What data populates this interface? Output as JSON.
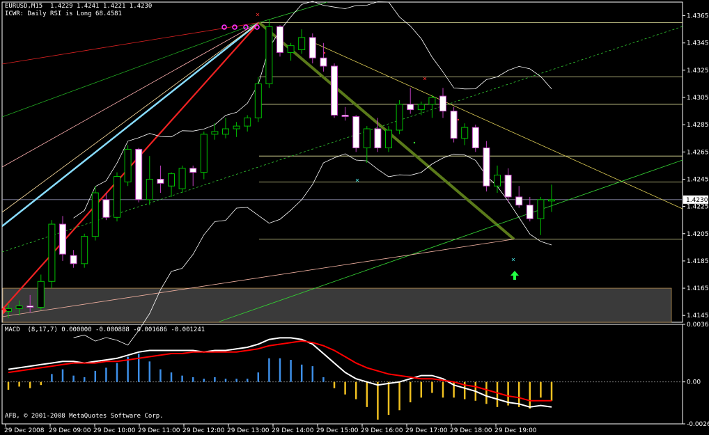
{
  "header": {
    "symbol_line": "EURUSD,M15  1.4229 1.4241 1.4221 1.4230",
    "indicator_line": "ICWR: Daily RSI is Long 68.4581"
  },
  "macd_panel": {
    "label": "MACD  (8,17,7) 0.000000 -0.000888 -0.001686 -0.001241",
    "copyright": "AFB, © 2001-2008 MetaQuotes Software Corp."
  },
  "colors": {
    "background": "#000000",
    "bull_candle": "#00c000",
    "bear_candle": "#ffffff",
    "grid": "#ffffff",
    "fib_lines": "#e8e8a0",
    "macd_line": "#ffffff",
    "signal_line": "#ff0000",
    "hist_pos": "#3d8fe8",
    "hist_neg": "#f0c020"
  },
  "chart_data": [
    {
      "type": "candlestick",
      "price_axis": {
        "min": 1.414,
        "max": 1.4375,
        "ticks": [
          "1.4365",
          "1.4345",
          "1.4325",
          "1.4305",
          "1.4285",
          "1.4265",
          "1.4245",
          "1.4225",
          "1.4205",
          "1.4185",
          "1.4165",
          "1.4145"
        ],
        "current_price": "1.4230"
      },
      "time_axis": {
        "labels": [
          "29 Dec 2008",
          "29 Dec 09:00",
          "29 Dec 10:00",
          "29 Dec 11:00",
          "29 Dec 12:00",
          "29 Dec 13:00",
          "29 Dec 14:00",
          "29 Dec 15:00",
          "29 Dec 16:00",
          "29 Dec 17:00",
          "29 Dec 18:00",
          "29 Dec 19:00"
        ]
      },
      "candles": [
        {
          "o": 1.4148,
          "h": 1.4154,
          "l": 1.4143,
          "c": 1.415
        },
        {
          "o": 1.415,
          "h": 1.4156,
          "l": 1.4145,
          "c": 1.4152
        },
        {
          "o": 1.4152,
          "h": 1.416,
          "l": 1.4147,
          "c": 1.4151
        },
        {
          "o": 1.4151,
          "h": 1.4175,
          "l": 1.4149,
          "c": 1.417
        },
        {
          "o": 1.417,
          "h": 1.4215,
          "l": 1.4165,
          "c": 1.4212
        },
        {
          "o": 1.4212,
          "h": 1.4218,
          "l": 1.4185,
          "c": 1.419
        },
        {
          "o": 1.4189,
          "h": 1.4193,
          "l": 1.418,
          "c": 1.4183
        },
        {
          "o": 1.4183,
          "h": 1.4205,
          "l": 1.418,
          "c": 1.4203
        },
        {
          "o": 1.4203,
          "h": 1.424,
          "l": 1.42,
          "c": 1.4235
        },
        {
          "o": 1.423,
          "h": 1.4235,
          "l": 1.4215,
          "c": 1.4217
        },
        {
          "o": 1.4217,
          "h": 1.425,
          "l": 1.4214,
          "c": 1.4247
        },
        {
          "o": 1.4243,
          "h": 1.427,
          "l": 1.424,
          "c": 1.4267
        },
        {
          "o": 1.4267,
          "h": 1.4268,
          "l": 1.4228,
          "c": 1.423
        },
        {
          "o": 1.423,
          "h": 1.4262,
          "l": 1.4226,
          "c": 1.4245
        },
        {
          "o": 1.4245,
          "h": 1.4255,
          "l": 1.4235,
          "c": 1.4242
        },
        {
          "o": 1.424,
          "h": 1.425,
          "l": 1.4232,
          "c": 1.4249
        },
        {
          "o": 1.4238,
          "h": 1.4255,
          "l": 1.4235,
          "c": 1.4253
        },
        {
          "o": 1.4253,
          "h": 1.4255,
          "l": 1.424,
          "c": 1.425
        },
        {
          "o": 1.425,
          "h": 1.428,
          "l": 1.4245,
          "c": 1.4278
        },
        {
          "o": 1.4278,
          "h": 1.4286,
          "l": 1.4274,
          "c": 1.428
        },
        {
          "o": 1.4278,
          "h": 1.429,
          "l": 1.4275,
          "c": 1.4282
        },
        {
          "o": 1.4282,
          "h": 1.4287,
          "l": 1.4276,
          "c": 1.4284
        },
        {
          "o": 1.4284,
          "h": 1.4292,
          "l": 1.428,
          "c": 1.429
        },
        {
          "o": 1.429,
          "h": 1.432,
          "l": 1.4287,
          "c": 1.4315
        },
        {
          "o": 1.4315,
          "h": 1.4362,
          "l": 1.4312,
          "c": 1.4357
        },
        {
          "o": 1.4357,
          "h": 1.4358,
          "l": 1.4335,
          "c": 1.4338
        },
        {
          "o": 1.4338,
          "h": 1.4345,
          "l": 1.4332,
          "c": 1.4343
        },
        {
          "o": 1.434,
          "h": 1.4355,
          "l": 1.4337,
          "c": 1.4349
        },
        {
          "o": 1.4349,
          "h": 1.4352,
          "l": 1.433,
          "c": 1.4334
        },
        {
          "o": 1.4334,
          "h": 1.4345,
          "l": 1.4324,
          "c": 1.4328
        },
        {
          "o": 1.4328,
          "h": 1.433,
          "l": 1.429,
          "c": 1.4292
        },
        {
          "o": 1.4292,
          "h": 1.4298,
          "l": 1.4288,
          "c": 1.4291
        },
        {
          "o": 1.4291,
          "h": 1.4292,
          "l": 1.4265,
          "c": 1.4268
        },
        {
          "o": 1.4268,
          "h": 1.4284,
          "l": 1.4257,
          "c": 1.4282
        },
        {
          "o": 1.4282,
          "h": 1.429,
          "l": 1.4265,
          "c": 1.4268
        },
        {
          "o": 1.4268,
          "h": 1.4284,
          "l": 1.4265,
          "c": 1.4281
        },
        {
          "o": 1.4281,
          "h": 1.4303,
          "l": 1.4278,
          "c": 1.43
        },
        {
          "o": 1.43,
          "h": 1.4312,
          "l": 1.4293,
          "c": 1.4296
        },
        {
          "o": 1.4296,
          "h": 1.4302,
          "l": 1.4292,
          "c": 1.43
        },
        {
          "o": 1.43,
          "h": 1.4307,
          "l": 1.429,
          "c": 1.4305
        },
        {
          "o": 1.4306,
          "h": 1.4312,
          "l": 1.429,
          "c": 1.4295
        },
        {
          "o": 1.4295,
          "h": 1.4298,
          "l": 1.4272,
          "c": 1.4275
        },
        {
          "o": 1.4275,
          "h": 1.4286,
          "l": 1.427,
          "c": 1.4283
        },
        {
          "o": 1.4283,
          "h": 1.4285,
          "l": 1.4265,
          "c": 1.4268
        },
        {
          "o": 1.4268,
          "h": 1.4273,
          "l": 1.4236,
          "c": 1.424
        },
        {
          "o": 1.424,
          "h": 1.4255,
          "l": 1.4235,
          "c": 1.4248
        },
        {
          "o": 1.4248,
          "h": 1.4253,
          "l": 1.4228,
          "c": 1.4232
        },
        {
          "o": 1.4232,
          "h": 1.424,
          "l": 1.4224,
          "c": 1.4226
        },
        {
          "o": 1.4226,
          "h": 1.4232,
          "l": 1.4214,
          "c": 1.4216
        },
        {
          "o": 1.4216,
          "h": 1.4232,
          "l": 1.4204,
          "c": 1.423
        },
        {
          "o": 1.4229,
          "h": 1.4241,
          "l": 1.4221,
          "c": 1.423
        }
      ],
      "horizontal_levels": [
        1.436,
        1.432,
        1.43,
        1.4262,
        1.4243,
        1.4201
      ],
      "support_zone": {
        "top": 1.4165,
        "bottom": 1.414
      }
    },
    {
      "type": "bar",
      "name": "MACD (8,17,7)",
      "axis": {
        "min": -0.00267,
        "max": 0.00366,
        "ticks": [
          "0.00366",
          "0.00",
          "-0.00267"
        ]
      },
      "histogram": [
        -0.0005,
        -0.0003,
        -0.0004,
        -0.0002,
        0.0005,
        0.0008,
        0.0004,
        0.0003,
        0.0007,
        0.0009,
        0.0012,
        0.0016,
        0.0018,
        0.0013,
        0.0008,
        0.0006,
        0.0004,
        0.0003,
        0.0002,
        0.0003,
        0.0002,
        0.0002,
        0.0002,
        0.0006,
        0.0015,
        0.0015,
        0.0014,
        0.0011,
        0.001,
        0.0003,
        -0.0004,
        -0.0008,
        -0.0011,
        -0.0016,
        -0.0024,
        -0.0021,
        -0.0018,
        -0.0013,
        -0.001,
        -0.0007,
        -0.001,
        -0.001,
        -0.0011,
        -0.0012,
        -0.0014,
        -0.0016,
        -0.0015,
        -0.0016,
        -0.0017,
        -0.001,
        -0.0012
      ],
      "macd_line": [
        0.0008,
        0.0009,
        0.001,
        0.0011,
        0.0012,
        0.0013,
        0.0013,
        0.0012,
        0.0013,
        0.0014,
        0.0015,
        0.0017,
        0.0019,
        0.002,
        0.002,
        0.002,
        0.002,
        0.002,
        0.0019,
        0.002,
        0.002,
        0.0021,
        0.0022,
        0.0024,
        0.0027,
        0.0028,
        0.0028,
        0.0027,
        0.0024,
        0.0018,
        0.0012,
        0.0006,
        0.0002,
        0.0,
        -0.0002,
        -0.0001,
        0.0,
        0.0002,
        0.0004,
        0.0004,
        0.0002,
        -0.0002,
        -0.0004,
        -0.0006,
        -0.0009,
        -0.0011,
        -0.0013,
        -0.0014,
        -0.0016,
        -0.0015,
        -0.0016
      ],
      "signal_line": [
        0.0006,
        0.0007,
        0.0008,
        0.0009,
        0.001,
        0.0011,
        0.0012,
        0.0012,
        0.0012,
        0.0013,
        0.0013,
        0.0014,
        0.0015,
        0.0016,
        0.0017,
        0.0018,
        0.0018,
        0.0019,
        0.0019,
        0.0019,
        0.0019,
        0.0019,
        0.002,
        0.0021,
        0.0023,
        0.0024,
        0.0025,
        0.0026,
        0.0025,
        0.0023,
        0.002,
        0.0016,
        0.0012,
        0.0009,
        0.0007,
        0.0005,
        0.0004,
        0.0003,
        0.0002,
        0.0002,
        0.0001,
        0.0,
        -0.0002,
        -0.0003,
        -0.0005,
        -0.0007,
        -0.0009,
        -0.001,
        -0.0012,
        -0.0012,
        -0.0012
      ]
    }
  ]
}
